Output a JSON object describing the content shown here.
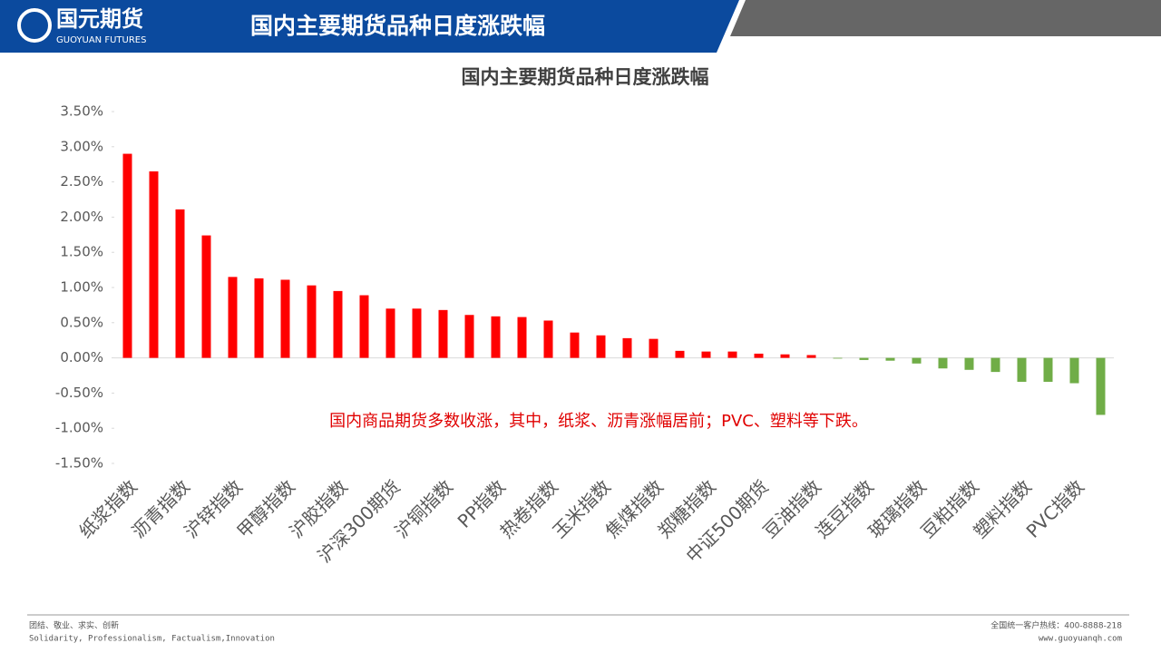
{
  "header": {
    "logo_name": "国元期货",
    "logo_sub": "GUOYUAN FUTURES",
    "title": "国内主要期货品种日度涨跌幅"
  },
  "chart_data": {
    "type": "bar",
    "title": "国内主要期货品种日度涨跌幅",
    "categories": [
      "纸浆指数",
      null,
      "沥青指数",
      null,
      "沪锌指数",
      null,
      "甲醇指数",
      null,
      "沪胶指数",
      null,
      "沪深300期货",
      null,
      "沪铜指数",
      null,
      "PP指数",
      null,
      "热卷指数",
      null,
      "玉米指数",
      null,
      "焦煤指数",
      null,
      "郑糖指数",
      null,
      "中证500期货",
      null,
      "豆油指数",
      null,
      "连豆指数",
      null,
      "玻璃指数",
      null,
      "豆粕指数",
      null,
      "塑料指数",
      null,
      "PVC指数",
      null
    ],
    "values": [
      2.9,
      2.65,
      2.11,
      1.74,
      1.15,
      1.13,
      1.11,
      1.03,
      0.95,
      0.89,
      0.7,
      0.7,
      0.68,
      0.61,
      0.59,
      0.58,
      0.53,
      0.36,
      0.32,
      0.28,
      0.27,
      0.1,
      0.09,
      0.09,
      0.06,
      0.05,
      0.04,
      -0.01,
      -0.03,
      -0.04,
      -0.08,
      -0.15,
      -0.17,
      -0.2,
      -0.34,
      -0.34,
      -0.36,
      -0.81
    ],
    "positive_color": "#ff0000",
    "negative_color": "#70ad47",
    "ylim": [
      -1.5,
      3.5
    ],
    "yticks": [
      {
        "value": -1.5,
        "label": "-1.50%"
      },
      {
        "value": -1.0,
        "label": "-1.00%"
      },
      {
        "value": -0.5,
        "label": "-0.50%"
      },
      {
        "value": 0,
        "label": "0.00%"
      },
      {
        "value": 0.5,
        "label": "0.50%"
      },
      {
        "value": 1.0,
        "label": "1.00%"
      },
      {
        "value": 1.5,
        "label": "1.50%"
      },
      {
        "value": 2.0,
        "label": "2.00%"
      },
      {
        "value": 2.5,
        "label": "2.50%"
      },
      {
        "value": 3.0,
        "label": "3.00%"
      },
      {
        "value": 3.5,
        "label": "3.50%"
      }
    ],
    "annotation": "国内商品期货多数收涨，其中，纸浆、沥青涨幅居前；PVC、塑料等下跌。"
  },
  "footer": {
    "motto_cn": "团结、敬业、求实、创新",
    "motto_en": "Solidarity, Professionalism, Factualism,Innovation",
    "hotline": "全国统一客户热线：400-8888-218",
    "website": "www.guoyuanqh.com"
  }
}
